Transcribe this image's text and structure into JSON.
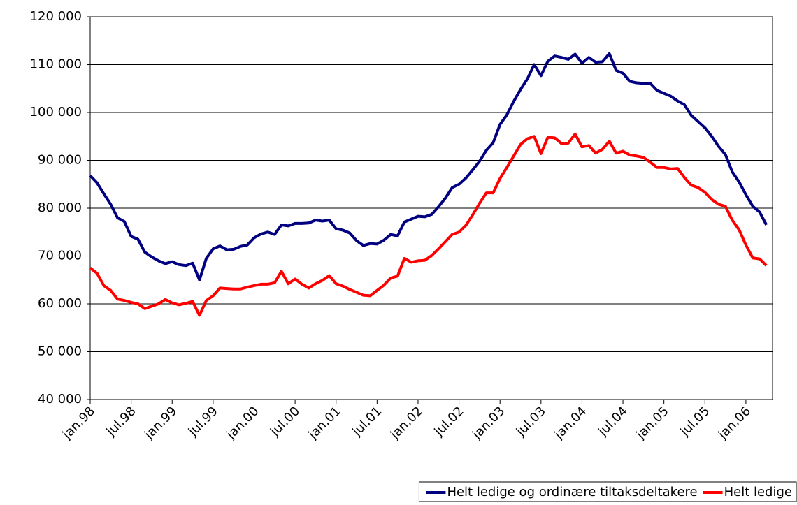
{
  "chart_data": {
    "type": "line",
    "categories": [
      "jan.98",
      null,
      null,
      null,
      null,
      null,
      "jul.98",
      null,
      null,
      null,
      null,
      null,
      "jan.99",
      null,
      null,
      null,
      null,
      null,
      "jul.99",
      null,
      null,
      null,
      null,
      null,
      "jan.00",
      null,
      null,
      null,
      null,
      null,
      "jul.00",
      null,
      null,
      null,
      null,
      null,
      "jan.01",
      null,
      null,
      null,
      null,
      null,
      "jul.01",
      null,
      null,
      null,
      null,
      null,
      "jan.02",
      null,
      null,
      null,
      null,
      null,
      "jul.02",
      null,
      null,
      null,
      null,
      null,
      "jan.03",
      null,
      null,
      null,
      null,
      null,
      "jul.03",
      null,
      null,
      null,
      null,
      null,
      "jan.04",
      null,
      null,
      null,
      null,
      null,
      "jul.04",
      null,
      null,
      null,
      null,
      null,
      "jan.05",
      null,
      null,
      null,
      null,
      null,
      "jul.05",
      null,
      null,
      null,
      null,
      null,
      "jan.06",
      null,
      null,
      null
    ],
    "series": [
      {
        "name": "Helt ledige og ordinære tiltaksdeltakere",
        "color": "#000080",
        "values": [
          86800,
          85300,
          83000,
          80800,
          78000,
          77200,
          74100,
          73500,
          70800,
          69800,
          69000,
          68400,
          68800,
          68200,
          68000,
          68500,
          65000,
          69500,
          71500,
          72100,
          71300,
          71400,
          72000,
          72300,
          73800,
          74600,
          75000,
          74500,
          76500,
          76300,
          76800,
          76800,
          76900,
          77500,
          77300,
          77500,
          75700,
          75400,
          74800,
          73200,
          72200,
          72600,
          72500,
          73300,
          74500,
          74200,
          77100,
          77700,
          78300,
          78200,
          78700,
          80300,
          82100,
          84300,
          85000,
          86300,
          88000,
          89800,
          92100,
          93700,
          97500,
          99500,
          102300,
          104800,
          107000,
          110000,
          107700,
          110700,
          111800,
          111500,
          111100,
          112200,
          110300,
          111500,
          110500,
          110600,
          112300,
          108800,
          108200,
          106500,
          106200,
          106100,
          106100,
          104600,
          104000,
          103400,
          102400,
          101600,
          99400,
          98100,
          96800,
          95000,
          92900,
          91200,
          87600,
          85500,
          82800,
          80400,
          79200,
          76500
        ]
      },
      {
        "name": "Helt ledige",
        "color": "#ff0000",
        "values": [
          67500,
          66400,
          63800,
          62800,
          61000,
          60700,
          60300,
          60000,
          59000,
          59500,
          60000,
          60900,
          60200,
          59800,
          60100,
          60500,
          57600,
          60700,
          61700,
          63300,
          63200,
          63100,
          63100,
          63500,
          63800,
          64100,
          64100,
          64400,
          66800,
          64200,
          65200,
          64100,
          63300,
          64200,
          64900,
          65900,
          64200,
          63700,
          63000,
          62400,
          61800,
          61700,
          62800,
          63900,
          65400,
          65800,
          69500,
          68700,
          69000,
          69100,
          70100,
          71500,
          73000,
          74500,
          75000,
          76400,
          78600,
          81000,
          83200,
          83200,
          86200,
          88500,
          90900,
          93300,
          94500,
          95000,
          91400,
          94800,
          94700,
          93500,
          93600,
          95500,
          92800,
          93100,
          91500,
          92300,
          94000,
          91500,
          91900,
          91100,
          90900,
          90600,
          89600,
          88500,
          88500,
          88200,
          88300,
          86400,
          84800,
          84300,
          83300,
          81800,
          80800,
          80400,
          77500,
          75500,
          72300,
          69600,
          69400,
          68000
        ]
      }
    ],
    "ylim": [
      40000,
      120000
    ],
    "yticks": [
      {
        "value": 40000,
        "label": "40 000"
      },
      {
        "value": 50000,
        "label": "50 000"
      },
      {
        "value": 60000,
        "label": "60 000"
      },
      {
        "value": 70000,
        "label": "70 000"
      },
      {
        "value": 80000,
        "label": "80 000"
      },
      {
        "value": 90000,
        "label": "90 000"
      },
      {
        "value": 100000,
        "label": "100 000"
      },
      {
        "value": 110000,
        "label": "110 000"
      },
      {
        "value": 120000,
        "label": "120 000"
      }
    ],
    "grid": true,
    "legend": "bottom-right"
  }
}
